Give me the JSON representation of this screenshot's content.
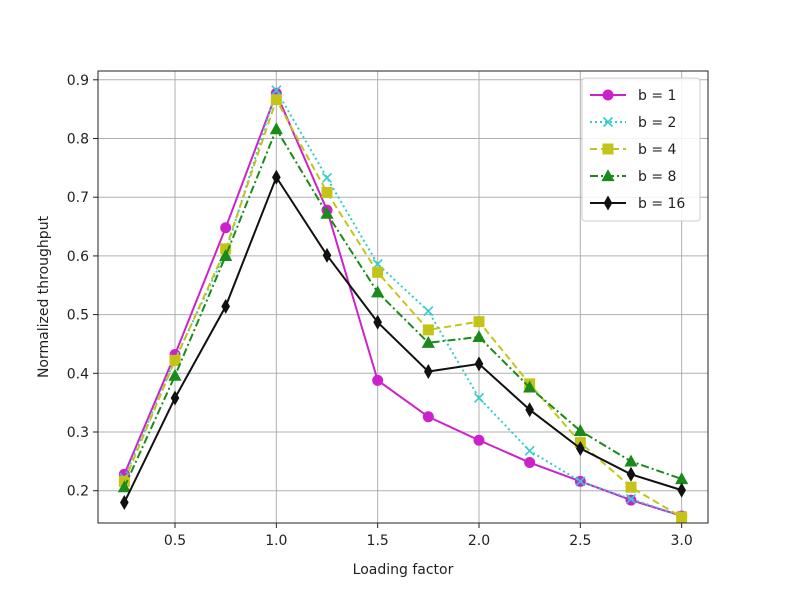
{
  "chart_data": {
    "type": "line",
    "title": "",
    "xlabel": "Loading factor",
    "ylabel": "Normalized throughput",
    "xlim": [
      0.12,
      3.13
    ],
    "ylim": [
      0.145,
      0.915
    ],
    "xticks": [
      0.5,
      1.0,
      1.5,
      2.0,
      2.5,
      3.0
    ],
    "xtick_labels": [
      "0.5",
      "1.0",
      "1.5",
      "2.0",
      "2.5",
      "3.0"
    ],
    "yticks": [
      0.2,
      0.3,
      0.4,
      0.5,
      0.6,
      0.7,
      0.8,
      0.9
    ],
    "ytick_labels": [
      "0.2",
      "0.3",
      "0.4",
      "0.5",
      "0.6",
      "0.7",
      "0.8",
      "0.9"
    ],
    "grid": true,
    "legend_position": "top-right",
    "x": [
      0.25,
      0.5,
      0.75,
      1.0,
      1.25,
      1.5,
      1.75,
      2.0,
      2.25,
      2.5,
      2.75,
      3.0
    ],
    "series": [
      {
        "name": "b = 1",
        "color": "#cc22cc",
        "marker": "circle",
        "dash": "solid",
        "values": [
          0.228,
          0.432,
          0.648,
          0.877,
          0.678,
          0.388,
          0.326,
          0.286,
          0.248,
          0.216,
          0.184,
          0.157
        ]
      },
      {
        "name": "b = 2",
        "color": "#33cccc",
        "marker": "x",
        "dash": "dotted",
        "values": [
          0.222,
          0.424,
          0.606,
          0.882,
          0.733,
          0.586,
          0.506,
          0.358,
          0.268,
          0.216,
          0.186,
          0.157
        ]
      },
      {
        "name": "b = 4",
        "color": "#c4c418",
        "marker": "square",
        "dash": "dashed",
        "values": [
          0.216,
          0.422,
          0.612,
          0.866,
          0.708,
          0.572,
          0.474,
          0.488,
          0.382,
          0.282,
          0.206,
          0.155
        ]
      },
      {
        "name": "b = 8",
        "color": "#1a8a1a",
        "marker": "triangle",
        "dash": "dashdot",
        "values": [
          0.206,
          0.396,
          0.6,
          0.816,
          0.672,
          0.538,
          0.452,
          0.462,
          0.376,
          0.302,
          0.25,
          0.22
        ]
      },
      {
        "name": "b = 16",
        "color": "#111111",
        "marker": "diamond",
        "dash": "solid",
        "values": [
          0.18,
          0.358,
          0.514,
          0.734,
          0.601,
          0.487,
          0.403,
          0.416,
          0.338,
          0.272,
          0.228,
          0.201
        ]
      }
    ]
  }
}
